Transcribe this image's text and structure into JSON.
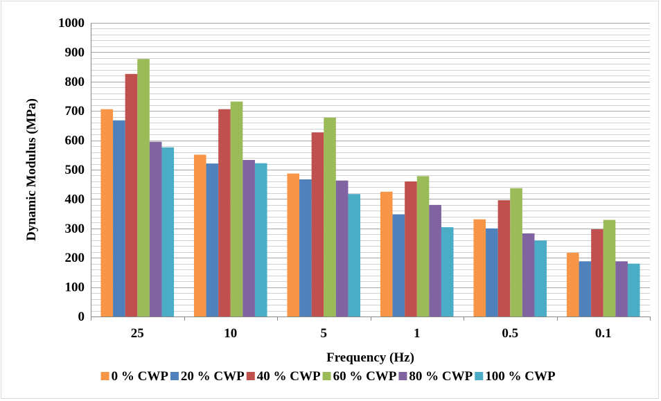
{
  "chart_data": {
    "type": "bar",
    "xlabel": "Frequency (Hz)",
    "ylabel": "Dynamic Modulus (MPa)",
    "ylim": [
      0,
      1000
    ],
    "ytick_step": 100,
    "minor_gridlines_step": 20,
    "grid": true,
    "legend_position": "bottom",
    "categories": [
      "25",
      "10",
      "5",
      "1",
      "0.5",
      "0.1"
    ],
    "series": [
      {
        "name": "0 % CWP",
        "color": "#f79646",
        "values": [
          706,
          551,
          487,
          425,
          331,
          217
        ]
      },
      {
        "name": "20 % CWP",
        "color": "#4f81bd",
        "values": [
          668,
          521,
          467,
          348,
          300,
          188
        ]
      },
      {
        "name": "40 % CWP",
        "color": "#c0504d",
        "values": [
          826,
          706,
          627,
          460,
          396,
          297
        ]
      },
      {
        "name": "60 % CWP",
        "color": "#9bbb59",
        "values": [
          877,
          732,
          677,
          478,
          437,
          329
        ]
      },
      {
        "name": "80 % CWP",
        "color": "#8064a2",
        "values": [
          595,
          533,
          463,
          380,
          283,
          188
        ]
      },
      {
        "name": "100 % CWP",
        "color": "#4bacc6",
        "values": [
          576,
          522,
          417,
          304,
          259,
          180
        ]
      }
    ]
  }
}
